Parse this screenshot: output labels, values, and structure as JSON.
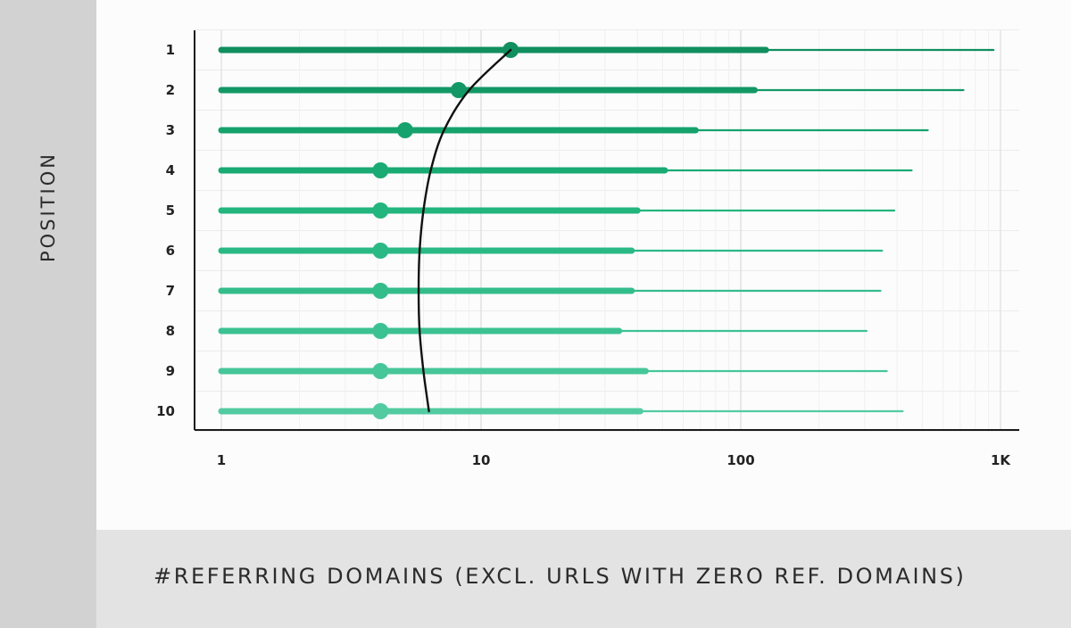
{
  "chart_data": {
    "type": "range-dot",
    "title": "",
    "xlabel": "#REFERRING DOMAINS (EXCL. URLS WITH ZERO REF. DOMAINS)",
    "ylabel": "POSITION",
    "x_scale": "log",
    "xlim": [
      1,
      1000
    ],
    "x_ticks": [
      "1",
      "10",
      "100",
      "1K"
    ],
    "x_tick_values": [
      1,
      10,
      100,
      1000
    ],
    "categories": [
      "1",
      "2",
      "3",
      "4",
      "5",
      "6",
      "7",
      "8",
      "9",
      "10"
    ],
    "series": [
      {
        "position": "1",
        "whisker_max": 940,
        "box_max": 125,
        "median": 13
      },
      {
        "position": "2",
        "whisker_max": 720,
        "box_max": 113,
        "median": 8.2
      },
      {
        "position": "3",
        "whisker_max": 525,
        "box_max": 67,
        "median": 5.1
      },
      {
        "position": "4",
        "whisker_max": 455,
        "box_max": 51,
        "median": 4.1
      },
      {
        "position": "5",
        "whisker_max": 390,
        "box_max": 40,
        "median": 4.1
      },
      {
        "position": "6",
        "whisker_max": 350,
        "box_max": 38,
        "median": 4.1
      },
      {
        "position": "7",
        "whisker_max": 345,
        "box_max": 38,
        "median": 4.1
      },
      {
        "position": "8",
        "whisker_max": 305,
        "box_max": 34,
        "median": 4.1
      },
      {
        "position": "9",
        "whisker_max": 365,
        "box_max": 43,
        "median": 4.1
      },
      {
        "position": "10",
        "whisker_max": 420,
        "box_max": 41,
        "median": 4.1
      }
    ],
    "trend_curve": [
      [
        13,
        1
      ],
      [
        9,
        2
      ],
      [
        7.2,
        3
      ],
      [
        6.4,
        4
      ],
      [
        6.0,
        5
      ],
      [
        5.8,
        6
      ],
      [
        5.75,
        7
      ],
      [
        5.8,
        8
      ],
      [
        6.0,
        9
      ],
      [
        6.3,
        10
      ]
    ],
    "colors": [
      "#118f5f",
      "#139865",
      "#16a26c",
      "#1aaa73",
      "#22b57d",
      "#2ab985",
      "#33bd8b",
      "#3cc292",
      "#46c699",
      "#52cba1"
    ],
    "trend_color": "#111111",
    "grid": true
  }
}
